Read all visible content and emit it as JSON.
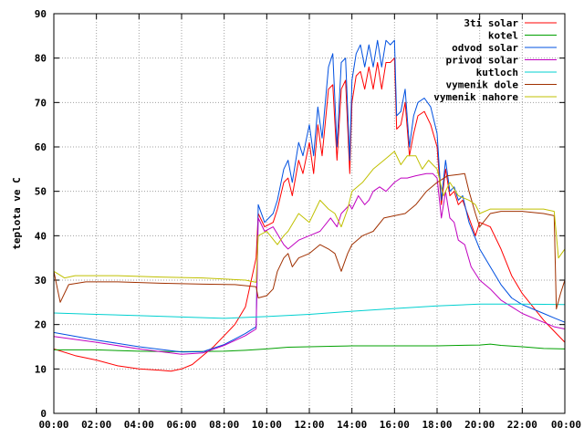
{
  "chart_data": {
    "type": "line",
    "xlabel": "",
    "ylabel": "teplota ve C",
    "xlim": [
      0,
      24
    ],
    "ylim": [
      0,
      90
    ],
    "grid": true,
    "legend_position": "top-right",
    "x_ticks": [
      "00:00",
      "02:00",
      "04:00",
      "06:00",
      "08:00",
      "10:00",
      "12:00",
      "14:00",
      "16:00",
      "18:00",
      "20:00",
      "22:00",
      "00:00"
    ],
    "y_ticks": [
      "0",
      "10",
      "20",
      "30",
      "40",
      "50",
      "60",
      "70",
      "80",
      "90"
    ],
    "series": [
      {
        "name": "3ti solar",
        "color": "#ff0000",
        "points": [
          [
            0,
            14.5
          ],
          [
            1,
            13
          ],
          [
            2,
            12
          ],
          [
            3,
            10.7
          ],
          [
            4,
            10
          ],
          [
            5,
            9.7
          ],
          [
            5.5,
            9.5
          ],
          [
            6,
            10
          ],
          [
            6.5,
            11
          ],
          [
            7,
            13
          ],
          [
            7.5,
            15
          ],
          [
            8,
            17.5
          ],
          [
            8.5,
            20
          ],
          [
            9,
            24
          ],
          [
            9.5,
            35
          ],
          [
            9.6,
            45
          ],
          [
            9.9,
            42
          ],
          [
            10.3,
            43
          ],
          [
            10.5,
            46
          ],
          [
            10.8,
            52
          ],
          [
            11,
            53
          ],
          [
            11.2,
            49
          ],
          [
            11.5,
            57
          ],
          [
            11.7,
            54
          ],
          [
            12,
            61
          ],
          [
            12.2,
            54
          ],
          [
            12.4,
            65
          ],
          [
            12.6,
            58
          ],
          [
            12.9,
            73
          ],
          [
            13.1,
            74
          ],
          [
            13.3,
            57
          ],
          [
            13.5,
            73
          ],
          [
            13.7,
            75
          ],
          [
            13.9,
            54
          ],
          [
            14,
            70
          ],
          [
            14.2,
            76
          ],
          [
            14.4,
            77
          ],
          [
            14.6,
            73
          ],
          [
            14.8,
            78
          ],
          [
            15,
            73
          ],
          [
            15.2,
            79
          ],
          [
            15.4,
            73
          ],
          [
            15.6,
            79
          ],
          [
            15.8,
            79
          ],
          [
            16,
            80
          ],
          [
            16.1,
            64
          ],
          [
            16.3,
            65
          ],
          [
            16.5,
            70
          ],
          [
            16.7,
            58
          ],
          [
            16.9,
            63
          ],
          [
            17.1,
            67
          ],
          [
            17.4,
            68
          ],
          [
            17.7,
            65
          ],
          [
            18,
            60
          ],
          [
            18.2,
            47
          ],
          [
            18.4,
            55
          ],
          [
            18.6,
            49
          ],
          [
            18.8,
            50
          ],
          [
            19,
            47
          ],
          [
            19.2,
            48
          ],
          [
            19.5,
            44
          ],
          [
            19.8,
            40
          ],
          [
            20,
            43
          ],
          [
            20.5,
            42
          ],
          [
            21,
            37
          ],
          [
            21.5,
            31
          ],
          [
            22,
            27
          ],
          [
            22.5,
            24
          ],
          [
            23,
            21
          ],
          [
            23.5,
            18.5
          ],
          [
            24,
            16
          ]
        ]
      },
      {
        "name": "kotel",
        "color": "#00a000",
        "points": [
          [
            0,
            14.3
          ],
          [
            2,
            14.3
          ],
          [
            4,
            14.0
          ],
          [
            6,
            13.9
          ],
          [
            8,
            14.0
          ],
          [
            9,
            14.2
          ],
          [
            10,
            14.5
          ],
          [
            11,
            14.9
          ],
          [
            12,
            15.0
          ],
          [
            13,
            15.1
          ],
          [
            14,
            15.2
          ],
          [
            15,
            15.2
          ],
          [
            16,
            15.2
          ],
          [
            17,
            15.2
          ],
          [
            18,
            15.2
          ],
          [
            19,
            15.3
          ],
          [
            20,
            15.4
          ],
          [
            20.5,
            15.6
          ],
          [
            21,
            15.3
          ],
          [
            22,
            15.0
          ],
          [
            23,
            14.6
          ],
          [
            24,
            14.5
          ]
        ]
      },
      {
        "name": "odvod solar",
        "color": "#0050e0",
        "points": [
          [
            0,
            18.2
          ],
          [
            2,
            16.5
          ],
          [
            4,
            15.0
          ],
          [
            6,
            13.8
          ],
          [
            7,
            13.9
          ],
          [
            8,
            15.5
          ],
          [
            9,
            18
          ],
          [
            9.5,
            19.5
          ],
          [
            9.6,
            47
          ],
          [
            9.9,
            43
          ],
          [
            10.3,
            45
          ],
          [
            10.5,
            48
          ],
          [
            10.8,
            55
          ],
          [
            11,
            57
          ],
          [
            11.2,
            52
          ],
          [
            11.5,
            61
          ],
          [
            11.7,
            58
          ],
          [
            12,
            65
          ],
          [
            12.2,
            58
          ],
          [
            12.4,
            69
          ],
          [
            12.6,
            62
          ],
          [
            12.9,
            78
          ],
          [
            13.1,
            81
          ],
          [
            13.3,
            60
          ],
          [
            13.5,
            79
          ],
          [
            13.7,
            80
          ],
          [
            13.9,
            57
          ],
          [
            14,
            75
          ],
          [
            14.2,
            81
          ],
          [
            14.4,
            83
          ],
          [
            14.6,
            78
          ],
          [
            14.8,
            83
          ],
          [
            15,
            78
          ],
          [
            15.2,
            84
          ],
          [
            15.4,
            78
          ],
          [
            15.6,
            84
          ],
          [
            15.8,
            83
          ],
          [
            16,
            84
          ],
          [
            16.1,
            67
          ],
          [
            16.3,
            68
          ],
          [
            16.5,
            73
          ],
          [
            16.7,
            60
          ],
          [
            16.9,
            67
          ],
          [
            17.1,
            70
          ],
          [
            17.4,
            71
          ],
          [
            17.7,
            69
          ],
          [
            18,
            63
          ],
          [
            18.2,
            48
          ],
          [
            18.4,
            57
          ],
          [
            18.6,
            50
          ],
          [
            18.8,
            51
          ],
          [
            19,
            48
          ],
          [
            19.2,
            49
          ],
          [
            19.5,
            43
          ],
          [
            20,
            37
          ],
          [
            20.5,
            33
          ],
          [
            21,
            29
          ],
          [
            21.5,
            26
          ],
          [
            22,
            24.5
          ],
          [
            22.5,
            23.5
          ],
          [
            23,
            22.5
          ],
          [
            23.5,
            21.5
          ],
          [
            24,
            20.5
          ]
        ]
      },
      {
        "name": "privod solar",
        "color": "#c000c0",
        "points": [
          [
            0,
            17.3
          ],
          [
            2,
            16
          ],
          [
            4,
            14.5
          ],
          [
            6,
            13.3
          ],
          [
            7,
            13.6
          ],
          [
            8,
            15.3
          ],
          [
            9,
            17.5
          ],
          [
            9.5,
            19
          ],
          [
            9.6,
            44
          ],
          [
            9.9,
            41
          ],
          [
            10.3,
            42
          ],
          [
            10.8,
            38
          ],
          [
            11,
            37
          ],
          [
            11.5,
            39
          ],
          [
            12,
            40
          ],
          [
            12.5,
            41
          ],
          [
            13,
            44
          ],
          [
            13.3,
            42
          ],
          [
            13.5,
            45
          ],
          [
            13.9,
            47
          ],
          [
            14,
            46
          ],
          [
            14.3,
            49
          ],
          [
            14.6,
            47
          ],
          [
            14.8,
            48
          ],
          [
            15,
            50
          ],
          [
            15.3,
            51
          ],
          [
            15.6,
            50
          ],
          [
            16,
            52
          ],
          [
            16.3,
            53
          ],
          [
            16.6,
            53
          ],
          [
            17,
            53.5
          ],
          [
            17.5,
            54
          ],
          [
            17.8,
            54
          ],
          [
            18,
            53
          ],
          [
            18.2,
            44
          ],
          [
            18.4,
            50
          ],
          [
            18.6,
            44
          ],
          [
            18.8,
            43
          ],
          [
            19,
            39
          ],
          [
            19.3,
            38
          ],
          [
            19.6,
            33
          ],
          [
            20,
            30
          ],
          [
            20.5,
            28
          ],
          [
            21,
            25.5
          ],
          [
            21.5,
            24
          ],
          [
            22,
            22.5
          ],
          [
            22.5,
            21.5
          ],
          [
            23,
            20.5
          ],
          [
            23.5,
            19.5
          ],
          [
            24,
            19
          ]
        ]
      },
      {
        "name": "kutloch",
        "color": "#00d0d0",
        "points": [
          [
            0,
            22.6
          ],
          [
            2,
            22.3
          ],
          [
            4,
            22.0
          ],
          [
            6,
            21.7
          ],
          [
            8,
            21.4
          ],
          [
            10,
            21.8
          ],
          [
            12,
            22.3
          ],
          [
            14,
            23.0
          ],
          [
            16,
            23.6
          ],
          [
            18,
            24.2
          ],
          [
            20,
            24.6
          ],
          [
            22,
            24.6
          ],
          [
            24,
            24.5
          ]
        ]
      },
      {
        "name": "vymenik dole",
        "color": "#a03000",
        "points": [
          [
            0,
            32
          ],
          [
            0.3,
            25
          ],
          [
            0.7,
            29
          ],
          [
            1.5,
            29.6
          ],
          [
            3,
            29.6
          ],
          [
            5,
            29.3
          ],
          [
            7,
            29.1
          ],
          [
            8.5,
            29
          ],
          [
            9.5,
            28.5
          ],
          [
            9.6,
            26
          ],
          [
            10,
            26.5
          ],
          [
            10.3,
            28
          ],
          [
            10.5,
            32
          ],
          [
            10.8,
            35
          ],
          [
            11,
            36
          ],
          [
            11.2,
            33
          ],
          [
            11.5,
            35
          ],
          [
            12,
            36
          ],
          [
            12.5,
            38
          ],
          [
            12.9,
            37
          ],
          [
            13.2,
            36
          ],
          [
            13.5,
            32
          ],
          [
            13.8,
            36
          ],
          [
            14,
            38
          ],
          [
            14.5,
            40
          ],
          [
            15,
            41
          ],
          [
            15.5,
            44
          ],
          [
            16,
            44.5
          ],
          [
            16.5,
            45
          ],
          [
            17,
            47
          ],
          [
            17.5,
            50
          ],
          [
            18,
            52
          ],
          [
            18.5,
            53.5
          ],
          [
            19,
            53.8
          ],
          [
            19.3,
            54
          ],
          [
            19.5,
            50
          ],
          [
            19.8,
            45
          ],
          [
            20,
            42
          ],
          [
            20.5,
            45
          ],
          [
            21,
            45.5
          ],
          [
            22,
            45.5
          ],
          [
            23,
            45
          ],
          [
            23.5,
            44.5
          ],
          [
            23.6,
            23.5
          ],
          [
            23.8,
            27
          ],
          [
            24,
            30
          ]
        ]
      },
      {
        "name": "vymenik nahore",
        "color": "#c0c000",
        "points": [
          [
            0,
            32
          ],
          [
            0.5,
            30.5
          ],
          [
            1,
            31
          ],
          [
            3,
            31
          ],
          [
            5,
            30.7
          ],
          [
            7,
            30.5
          ],
          [
            9,
            30
          ],
          [
            9.5,
            29.5
          ],
          [
            9.6,
            40
          ],
          [
            10,
            41
          ],
          [
            10.5,
            38
          ],
          [
            10.8,
            40
          ],
          [
            11,
            41
          ],
          [
            11.5,
            45
          ],
          [
            12,
            43
          ],
          [
            12.5,
            48
          ],
          [
            12.9,
            46
          ],
          [
            13.2,
            45
          ],
          [
            13.5,
            42
          ],
          [
            13.8,
            46
          ],
          [
            14,
            50
          ],
          [
            14.5,
            52
          ],
          [
            15,
            55
          ],
          [
            15.5,
            57
          ],
          [
            16,
            59
          ],
          [
            16.3,
            56
          ],
          [
            16.6,
            58
          ],
          [
            17,
            58
          ],
          [
            17.3,
            55
          ],
          [
            17.6,
            57
          ],
          [
            17.8,
            56
          ],
          [
            18,
            55
          ],
          [
            18.3,
            49
          ],
          [
            18.6,
            52
          ],
          [
            19,
            49
          ],
          [
            19.5,
            48
          ],
          [
            19.8,
            47
          ],
          [
            20,
            45
          ],
          [
            20.5,
            46
          ],
          [
            21,
            46
          ],
          [
            22,
            46
          ],
          [
            23,
            46
          ],
          [
            23.5,
            45.5
          ],
          [
            23.7,
            35
          ],
          [
            24,
            37
          ]
        ]
      }
    ]
  }
}
